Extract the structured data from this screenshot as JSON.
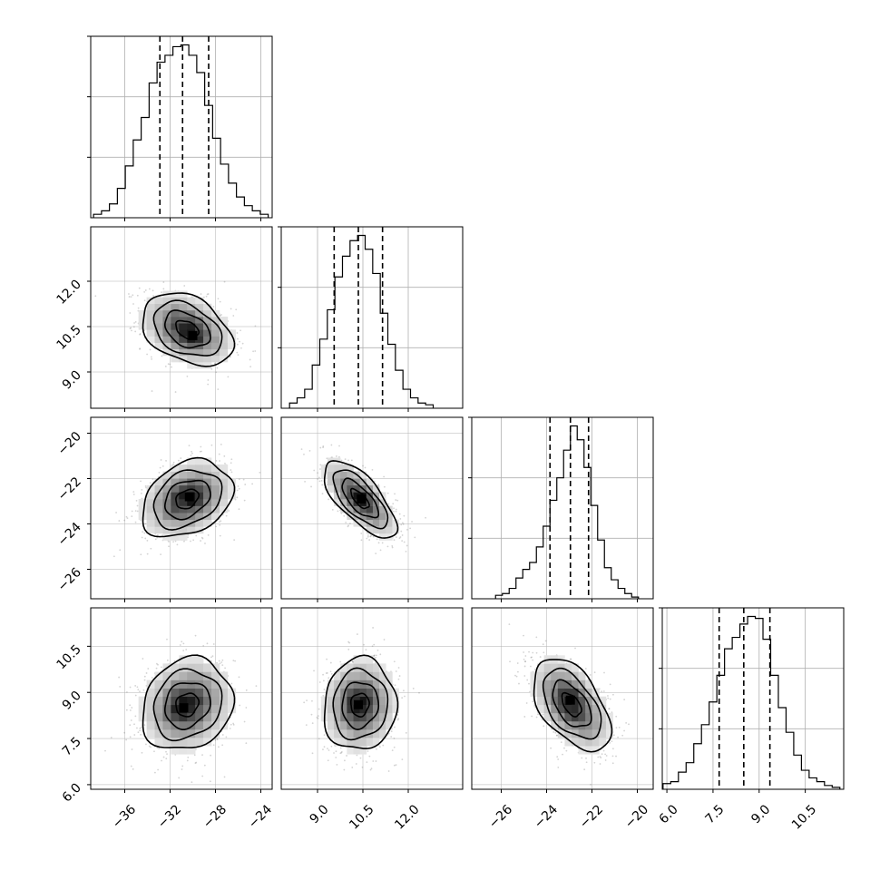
{
  "chart_data": {
    "type": "corner",
    "parameters": [
      {
        "name": "",
        "range": [
          -39.0,
          -23.0
        ],
        "ticks": [
          -36,
          -32,
          -28,
          -24
        ],
        "tick_labels": [
          "−36",
          "−32",
          "−28",
          "−24"
        ]
      },
      {
        "name": "",
        "range": [
          7.8,
          13.8
        ],
        "ticks": [
          9.0,
          10.5,
          12.0
        ],
        "tick_labels": [
          "9.0",
          "10.5",
          "12.0"
        ]
      },
      {
        "name": "",
        "range": [
          -27.3,
          -19.3
        ],
        "ticks": [
          -26,
          -24,
          -22,
          -20
        ],
        "tick_labels": [
          "−26",
          "−24",
          "−22",
          "−20"
        ]
      },
      {
        "name": "",
        "range": [
          5.85,
          11.75
        ],
        "ticks": [
          6.0,
          7.5,
          9.0,
          10.5
        ],
        "tick_labels": [
          "6.0",
          "7.5",
          "9.0",
          "10.5"
        ]
      }
    ],
    "marginals": [
      {
        "parameter": 0,
        "quantiles": [
          -32.9,
          -30.9,
          -28.6
        ],
        "bins": [
          -38.4,
          -37.7,
          -37.0,
          -36.3,
          -35.6,
          -34.9,
          -34.2,
          -33.5,
          -32.8,
          -32.1,
          -31.4,
          -30.7,
          -30.0,
          -29.3,
          -28.6,
          -27.9,
          -27.2,
          -26.5,
          -25.8,
          -25.1,
          -24.4,
          -23.7
        ],
        "counts": [
          2,
          4,
          8,
          17,
          30,
          45,
          58,
          78,
          90,
          94,
          99,
          100,
          94,
          84,
          65,
          46,
          31,
          20,
          12,
          7,
          4,
          2
        ]
      },
      {
        "parameter": 1,
        "quantiles": [
          9.55,
          10.35,
          11.15
        ],
        "bins": [
          8.2,
          8.45,
          8.7,
          8.95,
          9.2,
          9.45,
          9.7,
          9.95,
          10.2,
          10.45,
          10.7,
          10.95,
          11.2,
          11.45,
          11.7,
          11.95,
          12.2,
          12.45,
          12.7
        ],
        "counts": [
          3,
          6,
          11,
          25,
          40,
          57,
          76,
          88,
          97,
          100,
          92,
          78,
          55,
          37,
          22,
          11,
          6,
          3,
          2
        ]
      },
      {
        "parameter": 2,
        "quantiles": [
          -23.85,
          -22.95,
          -22.15
        ],
        "bins": [
          -26.1,
          -25.8,
          -25.5,
          -25.2,
          -24.9,
          -24.6,
          -24.3,
          -24.0,
          -23.7,
          -23.4,
          -23.1,
          -22.8,
          -22.5,
          -22.2,
          -21.9,
          -21.6,
          -21.3,
          -21.0,
          -20.7,
          -20.4,
          -20.1
        ],
        "counts": [
          2,
          3,
          6,
          12,
          17,
          21,
          30,
          42,
          57,
          70,
          86,
          100,
          92,
          76,
          54,
          34,
          18,
          11,
          6,
          3,
          1
        ]
      },
      {
        "parameter": 3,
        "quantiles": [
          7.7,
          8.5,
          9.35
        ],
        "bins": [
          6.0,
          6.25,
          6.5,
          6.75,
          7.0,
          7.25,
          7.5,
          7.75,
          8.0,
          8.25,
          8.5,
          8.75,
          9.0,
          9.25,
          9.5,
          9.75,
          10.0,
          10.25,
          10.5,
          10.75,
          11.0,
          11.25,
          11.5
        ],
        "counts": [
          3,
          4,
          9,
          14,
          24,
          34,
          46,
          60,
          74,
          80,
          87,
          91,
          90,
          79,
          60,
          43,
          30,
          18,
          10,
          6,
          4,
          2,
          1
        ]
      }
    ],
    "joint": [
      {
        "x": 0,
        "y": 1,
        "mean": [
          -30.5,
          10.4
        ],
        "sd": [
          2.0,
          0.6
        ],
        "rho": -0.35,
        "peak": [
          -30.0,
          10.2
        ]
      },
      {
        "x": 0,
        "y": 2,
        "mean": [
          -30.5,
          -22.9
        ],
        "sd": [
          2.0,
          0.85
        ],
        "rho": 0.3,
        "peak": [
          -30.3,
          -22.8
        ]
      },
      {
        "x": 1,
        "y": 2,
        "mean": [
          10.4,
          -22.9
        ],
        "sd": [
          0.6,
          0.85
        ],
        "rho": -0.7,
        "peak": [
          10.45,
          -22.9
        ]
      },
      {
        "x": 0,
        "y": 3,
        "mean": [
          -30.5,
          8.6
        ],
        "sd": [
          2.0,
          0.75
        ],
        "rho": 0.15,
        "peak": [
          -30.8,
          8.5
        ]
      },
      {
        "x": 1,
        "y": 3,
        "mean": [
          10.4,
          8.6
        ],
        "sd": [
          0.6,
          0.75
        ],
        "rho": 0.05,
        "peak": [
          10.35,
          8.6
        ]
      },
      {
        "x": 2,
        "y": 3,
        "mean": [
          -22.9,
          8.6
        ],
        "sd": [
          0.85,
          0.75
        ],
        "rho": -0.5,
        "peak": [
          -22.95,
          8.75
        ]
      }
    ],
    "contour_levels_sigma": [
      0.5,
      1.0,
      1.5,
      2.0
    ],
    "grid": true,
    "colors": {
      "line": "#000000",
      "points": "#808080",
      "grid": "#b0b0b0"
    }
  }
}
